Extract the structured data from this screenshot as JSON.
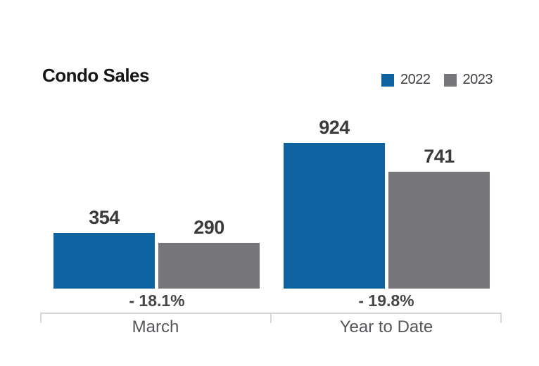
{
  "title": "Condo Sales",
  "legend": [
    {
      "label": "2022",
      "color": "#0E63A1"
    },
    {
      "label": "2023",
      "color": "#77777B"
    }
  ],
  "chart_data": {
    "type": "bar",
    "title": "Condo Sales",
    "categories": [
      "March",
      "Year to Date"
    ],
    "series": [
      {
        "name": "2022",
        "color": "#0E63A1",
        "values": [
          354,
          924
        ]
      },
      {
        "name": "2023",
        "color": "#77777B",
        "values": [
          290,
          741
        ]
      }
    ],
    "change_labels": [
      "- 18.1%",
      "- 19.8%"
    ],
    "value_labels": true,
    "ylim": [
      0,
      924
    ],
    "grid": false,
    "legend_position": "top-right",
    "axis_color": "#D8D8DA"
  }
}
